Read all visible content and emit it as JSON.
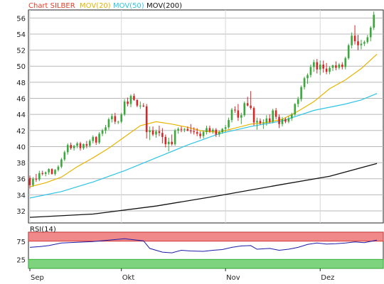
{
  "chart_data": {
    "type": "candlestick",
    "legend": [
      {
        "label": "Chart SILBER",
        "color": "#e0402a"
      },
      {
        "label": "MOV(20)",
        "color": "#e8b400"
      },
      {
        "label": "MOV(50)",
        "color": "#2ec4e6"
      },
      {
        "label": "MOV(200)",
        "color": "#111111"
      }
    ],
    "y_axis": {
      "ticks": [
        32,
        34,
        36,
        38,
        40,
        42,
        44,
        46,
        48,
        50,
        52,
        54,
        56
      ],
      "ylim": [
        30.5,
        57
      ]
    },
    "x_axis": {
      "months": [
        {
          "label": "Sep",
          "day": 0
        },
        {
          "label": "Okt",
          "day": 29
        },
        {
          "label": "Nov",
          "day": 62
        },
        {
          "label": "Dez",
          "day": 92
        }
      ],
      "total_days": 112
    },
    "colors": {
      "up": "#3aa83a",
      "down": "#d42828",
      "grid": "#b8b8b8",
      "rsi_line": "#1a1aa8",
      "rsi_high": "#f08a8a",
      "rsi_low": "#7ed47e"
    },
    "candles": [
      [
        0,
        36.1,
        36.4,
        34.8,
        35.2
      ],
      [
        1,
        35.2,
        36.2,
        35.0,
        36.0
      ],
      [
        2,
        36.0,
        36.6,
        35.6,
        35.9
      ],
      [
        3,
        35.9,
        37.0,
        35.7,
        36.7
      ],
      [
        4,
        36.7,
        37.0,
        36.4,
        36.6
      ],
      [
        5,
        36.6,
        36.9,
        36.3,
        36.8
      ],
      [
        6,
        36.8,
        37.3,
        36.5,
        37.2
      ],
      [
        7,
        37.2,
        37.3,
        36.5,
        36.6
      ],
      [
        8,
        36.6,
        37.2,
        36.4,
        37.1
      ],
      [
        9,
        37.1,
        37.7,
        36.9,
        37.5
      ],
      [
        10,
        37.5,
        38.6,
        37.3,
        38.4
      ],
      [
        11,
        38.4,
        39.5,
        38.2,
        39.3
      ],
      [
        12,
        39.3,
        40.4,
        39.0,
        40.2
      ],
      [
        13,
        40.2,
        40.5,
        39.6,
        39.8
      ],
      [
        14,
        39.8,
        40.2,
        39.5,
        40.1
      ],
      [
        15,
        40.1,
        40.6,
        39.8,
        40.4
      ],
      [
        16,
        40.4,
        40.6,
        39.5,
        39.8
      ],
      [
        17,
        39.8,
        40.4,
        39.6,
        40.3
      ],
      [
        18,
        40.3,
        40.7,
        39.8,
        40.1
      ],
      [
        19,
        40.1,
        40.9,
        39.9,
        40.7
      ],
      [
        20,
        40.7,
        41.4,
        40.4,
        41.2
      ],
      [
        21,
        41.2,
        41.3,
        40.2,
        40.5
      ],
      [
        22,
        40.5,
        41.8,
        40.3,
        41.6
      ],
      [
        23,
        41.6,
        42.2,
        41.3,
        42.0
      ],
      [
        24,
        42.0,
        42.7,
        41.6,
        42.4
      ],
      [
        25,
        42.4,
        43.6,
        42.1,
        43.4
      ],
      [
        26,
        43.4,
        44.1,
        43.0,
        43.8
      ],
      [
        27,
        43.8,
        44.2,
        42.8,
        43.1
      ],
      [
        28,
        43.1,
        43.2,
        42.8,
        43.1
      ],
      [
        29,
        43.1,
        44.2,
        42.9,
        44.0
      ],
      [
        30,
        44.0,
        45.9,
        43.8,
        45.6
      ],
      [
        31,
        45.6,
        46.1,
        45.0,
        45.3
      ],
      [
        32,
        45.3,
        46.5,
        44.9,
        46.3
      ],
      [
        33,
        46.3,
        46.6,
        45.7,
        45.8
      ],
      [
        34,
        45.8,
        45.9,
        44.9,
        45.1
      ],
      [
        35,
        45.1,
        45.6,
        44.7,
        45.1
      ],
      [
        36,
        45.1,
        45.4,
        44.9,
        45.0
      ],
      [
        37,
        45.0,
        45.3,
        41.0,
        41.8
      ],
      [
        38,
        41.8,
        42.5,
        40.8,
        42.0
      ],
      [
        39,
        42.0,
        42.5,
        41.3,
        41.5
      ],
      [
        40,
        41.5,
        42.1,
        41.1,
        41.9
      ],
      [
        41,
        41.9,
        42.6,
        41.3,
        41.7
      ],
      [
        42,
        41.7,
        42.3,
        40.4,
        41.2
      ],
      [
        43,
        41.2,
        41.5,
        39.9,
        40.3
      ],
      [
        44,
        40.3,
        41.1,
        39.4,
        40.6
      ],
      [
        45,
        40.6,
        41.5,
        40.1,
        40.3
      ],
      [
        46,
        40.3,
        42.2,
        40.1,
        42.0
      ],
      [
        47,
        42.0,
        42.4,
        41.6,
        42.2
      ],
      [
        48,
        42.2,
        42.5,
        41.8,
        42.1
      ],
      [
        49,
        42.1,
        42.3,
        41.8,
        42.2
      ],
      [
        50,
        42.2,
        42.5,
        41.9,
        42.0
      ],
      [
        51,
        42.0,
        42.8,
        41.6,
        41.9
      ],
      [
        52,
        41.9,
        42.4,
        41.5,
        41.8
      ],
      [
        53,
        41.8,
        42.3,
        41.3,
        41.6
      ],
      [
        54,
        41.6,
        41.9,
        41.0,
        41.3
      ],
      [
        55,
        41.3,
        42.0,
        41.0,
        41.8
      ],
      [
        56,
        41.8,
        42.6,
        41.5,
        42.3
      ],
      [
        57,
        42.3,
        42.6,
        41.7,
        41.9
      ],
      [
        58,
        41.9,
        42.3,
        41.6,
        42.1
      ],
      [
        59,
        42.1,
        42.3,
        41.2,
        41.5
      ],
      [
        60,
        41.5,
        42.0,
        41.2,
        41.8
      ],
      [
        61,
        41.8,
        42.3,
        41.6,
        42.2
      ],
      [
        62,
        42.2,
        42.7,
        41.8,
        42.4
      ],
      [
        63,
        42.4,
        43.6,
        42.2,
        43.3
      ],
      [
        64,
        43.3,
        44.8,
        43.0,
        44.6
      ],
      [
        65,
        44.6,
        45.0,
        44.2,
        44.5
      ],
      [
        66,
        44.5,
        45.3,
        43.2,
        43.6
      ],
      [
        67,
        43.6,
        44.2,
        42.8,
        43.9
      ],
      [
        68,
        43.9,
        45.6,
        43.7,
        45.4
      ],
      [
        69,
        45.4,
        46.2,
        45.0,
        45.1
      ],
      [
        70,
        45.1,
        46.9,
        44.6,
        44.8
      ],
      [
        71,
        44.8,
        45.0,
        42.6,
        43.0
      ],
      [
        72,
        43.0,
        43.6,
        42.1,
        43.2
      ],
      [
        73,
        43.2,
        43.5,
        42.7,
        42.9
      ],
      [
        74,
        42.9,
        43.4,
        42.2,
        43.0
      ],
      [
        75,
        43.0,
        43.9,
        42.6,
        43.5
      ],
      [
        76,
        43.5,
        44.0,
        42.9,
        43.1
      ],
      [
        77,
        43.1,
        44.7,
        42.9,
        44.5
      ],
      [
        78,
        44.5,
        44.8,
        43.4,
        43.7
      ],
      [
        79,
        43.7,
        44.0,
        42.3,
        42.8
      ],
      [
        80,
        42.8,
        43.7,
        42.5,
        43.4
      ],
      [
        81,
        43.4,
        43.6,
        42.9,
        43.1
      ],
      [
        82,
        43.1,
        43.8,
        42.9,
        43.5
      ],
      [
        83,
        43.5,
        44.2,
        43.2,
        44.0
      ],
      [
        84,
        44.0,
        45.4,
        43.8,
        45.3
      ],
      [
        85,
        45.3,
        46.2,
        44.9,
        45.9
      ],
      [
        86,
        45.9,
        47.6,
        45.6,
        47.4
      ],
      [
        87,
        47.4,
        48.7,
        47.1,
        48.5
      ],
      [
        88,
        48.5,
        49.1,
        47.8,
        48.9
      ],
      [
        89,
        48.9,
        50.2,
        48.6,
        49.9
      ],
      [
        90,
        49.9,
        50.8,
        49.3,
        50.5
      ],
      [
        91,
        50.5,
        50.9,
        49.1,
        49.6
      ],
      [
        92,
        49.6,
        50.7,
        48.9,
        50.2
      ],
      [
        93,
        50.2,
        50.7,
        49.2,
        49.7
      ],
      [
        94,
        49.7,
        50.4,
        49.0,
        49.3
      ],
      [
        95,
        49.3,
        50.0,
        49.0,
        49.8
      ],
      [
        96,
        49.8,
        50.2,
        49.4,
        50.1
      ],
      [
        97,
        50.1,
        50.6,
        49.5,
        49.8
      ],
      [
        98,
        49.8,
        50.4,
        49.6,
        50.2
      ],
      [
        99,
        50.2,
        50.5,
        49.6,
        49.9
      ],
      [
        100,
        49.9,
        51.2,
        49.6,
        51.0
      ],
      [
        101,
        51.0,
        52.8,
        50.8,
        52.6
      ],
      [
        102,
        52.6,
        54.2,
        52.2,
        53.8
      ],
      [
        103,
        53.8,
        55.1,
        52.7,
        53.1
      ],
      [
        104,
        53.1,
        53.9,
        52.0,
        52.6
      ],
      [
        105,
        52.6,
        53.3,
        52.1,
        52.8
      ],
      [
        106,
        52.8,
        53.2,
        52.5,
        53.0
      ],
      [
        107,
        53.0,
        53.9,
        52.8,
        53.6
      ],
      [
        108,
        53.6,
        55.0,
        53.1,
        54.8
      ],
      [
        109,
        54.8,
        56.8,
        54.5,
        56.4
      ]
    ],
    "mov20": [
      [
        0,
        35.0
      ],
      [
        5,
        35.5
      ],
      [
        10,
        36.2
      ],
      [
        15,
        37.5
      ],
      [
        20,
        38.6
      ],
      [
        25,
        39.8
      ],
      [
        30,
        41.2
      ],
      [
        35,
        42.6
      ],
      [
        40,
        43.1
      ],
      [
        45,
        42.8
      ],
      [
        50,
        42.4
      ],
      [
        55,
        41.9
      ],
      [
        60,
        41.8
      ],
      [
        65,
        42.3
      ],
      [
        70,
        42.8
      ],
      [
        75,
        43.0
      ],
      [
        80,
        43.4
      ],
      [
        85,
        44.4
      ],
      [
        90,
        45.6
      ],
      [
        95,
        47.2
      ],
      [
        100,
        48.3
      ],
      [
        105,
        49.7
      ],
      [
        110,
        51.5
      ]
    ],
    "mov50": [
      [
        0,
        33.6
      ],
      [
        10,
        34.4
      ],
      [
        20,
        35.6
      ],
      [
        30,
        37.0
      ],
      [
        40,
        38.6
      ],
      [
        50,
        40.2
      ],
      [
        60,
        41.6
      ],
      [
        70,
        42.5
      ],
      [
        80,
        43.2
      ],
      [
        90,
        44.5
      ],
      [
        100,
        45.3
      ],
      [
        105,
        45.8
      ],
      [
        110,
        46.6
      ]
    ],
    "mov200": [
      [
        0,
        31.2
      ],
      [
        20,
        31.6
      ],
      [
        40,
        32.6
      ],
      [
        60,
        33.9
      ],
      [
        80,
        35.3
      ],
      [
        95,
        36.3
      ],
      [
        110,
        37.9
      ]
    ],
    "rsi": {
      "label": "RSI(14)",
      "ticks": [
        25,
        75
      ],
      "ylim": [
        0,
        100
      ],
      "bands": {
        "high": [
          75,
          100
        ],
        "low": [
          0,
          25
        ]
      },
      "values": [
        [
          0,
          58
        ],
        [
          3,
          60
        ],
        [
          6,
          63
        ],
        [
          10,
          70
        ],
        [
          15,
          72
        ],
        [
          20,
          74
        ],
        [
          25,
          78
        ],
        [
          30,
          82
        ],
        [
          33,
          79
        ],
        [
          36,
          76
        ],
        [
          38,
          55
        ],
        [
          42,
          45
        ],
        [
          45,
          43
        ],
        [
          48,
          50
        ],
        [
          51,
          48
        ],
        [
          55,
          47
        ],
        [
          58,
          50
        ],
        [
          61,
          52
        ],
        [
          64,
          58
        ],
        [
          67,
          62
        ],
        [
          70,
          63
        ],
        [
          72,
          53
        ],
        [
          76,
          55
        ],
        [
          79,
          50
        ],
        [
          82,
          53
        ],
        [
          85,
          58
        ],
        [
          88,
          66
        ],
        [
          91,
          70
        ],
        [
          94,
          67
        ],
        [
          97,
          68
        ],
        [
          100,
          70
        ],
        [
          103,
          73
        ],
        [
          106,
          71
        ],
        [
          110,
          78
        ]
      ]
    }
  }
}
